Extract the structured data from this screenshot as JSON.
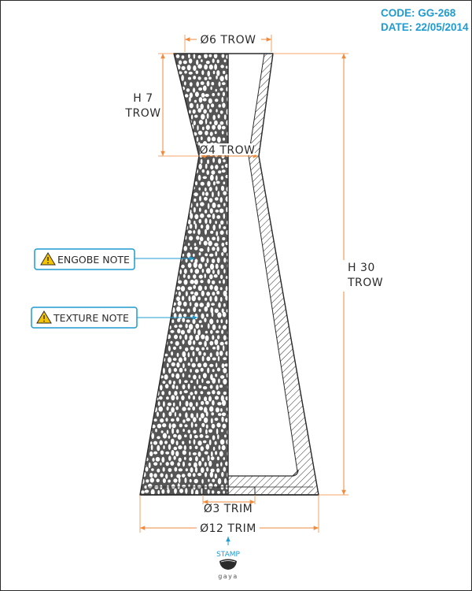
{
  "header": {
    "code": "CODE: GG-268",
    "date": "DATE: 22/05/2014"
  },
  "dimensions": {
    "top_diameter": "Ø6 TROW",
    "neck_diameter": "Ø4 TROW",
    "neck_height_line1": "H 7",
    "neck_height_line2": "TROW",
    "total_height_line1": "H 30",
    "total_height_line2": "TROW",
    "foot_diameter": "Ø3 TRIM",
    "base_diameter": "Ø12 TRIM"
  },
  "notes": [
    {
      "label": "ENGOBE NOTE",
      "icon": "warning-icon"
    },
    {
      "label": "TEXTURE NOTE",
      "icon": "warning-icon"
    }
  ],
  "stamp": {
    "label": "STAMP",
    "brand": "gaya"
  },
  "colors": {
    "accent": "#1f9bd1",
    "dimension_line": "#f08a3c",
    "outline": "#2b2b2b",
    "texture_fill": "#555555",
    "warning": "#f5c400"
  }
}
